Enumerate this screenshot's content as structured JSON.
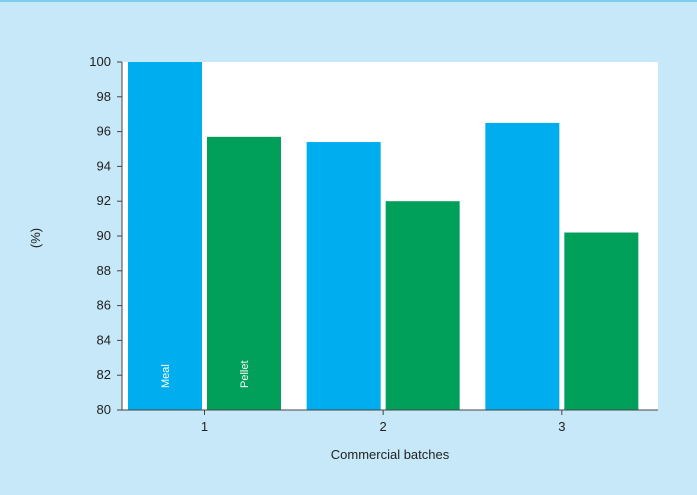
{
  "colors": {
    "background": "#c6e8f8",
    "top_rule": "#7fcdee",
    "plot_background": "#ffffff",
    "meal": "#00aeef",
    "pellet": "#00a05a",
    "axis": "#444444"
  },
  "chart_data": {
    "type": "bar",
    "title": "",
    "xlabel": "Commercial batches",
    "ylabel": "(%)",
    "categories": [
      "1",
      "2",
      "3"
    ],
    "series": [
      {
        "name": "Meal",
        "values": [
          100,
          95.4,
          96.5
        ]
      },
      {
        "name": "Pellet",
        "values": [
          95.7,
          92.0,
          90.2
        ]
      }
    ],
    "ylim": [
      80,
      100
    ],
    "yticks": [
      80,
      82,
      84,
      86,
      88,
      90,
      92,
      94,
      96,
      98,
      100
    ],
    "grid": false,
    "legend": "none (series names printed inside first category bars)"
  }
}
